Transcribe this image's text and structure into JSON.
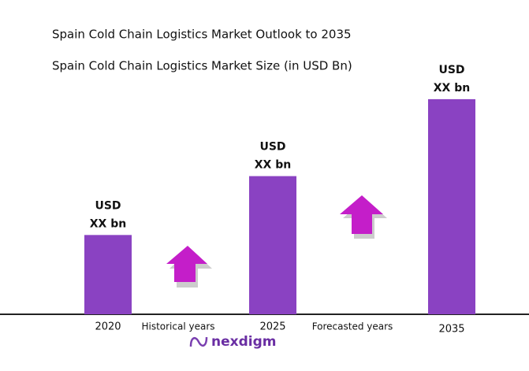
{
  "chart_data": {
    "type": "bar",
    "title": "Spain Cold Chain Logistics Market Outlook to 2035",
    "subtitle": "Spain Cold Chain Logistics Market Size (in USD Bn)",
    "categories": [
      "2020",
      "2025",
      "2035"
    ],
    "values": [
      101,
      176,
      274
    ],
    "value_labels": [
      [
        "USD",
        "XX bn"
      ],
      [
        "USD",
        "XX bn"
      ],
      [
        "USD",
        "XX bn"
      ]
    ],
    "color": "#8a42c2",
    "ylim": [
      0,
      300
    ],
    "annotations": [
      "Historical years",
      "Forecasted years"
    ],
    "logo": "nexdigm"
  }
}
